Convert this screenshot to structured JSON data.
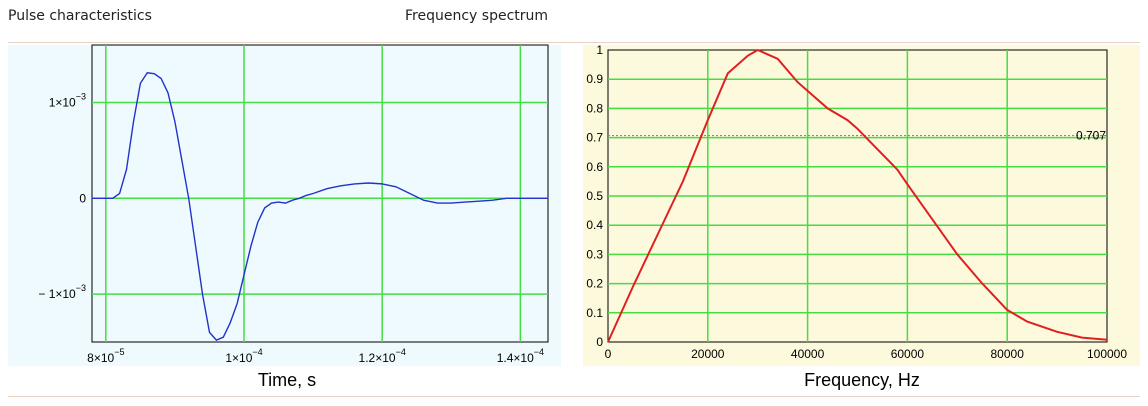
{
  "sections": {
    "left_label": "Pulse characteristics",
    "right_label": "Frequency spectrum"
  },
  "colors": {
    "left_bg": "#eefafd",
    "right_bg": "#fdf9dd",
    "grid": "#44dd44",
    "pulse_line": "#2233cc",
    "spectrum_line": "#e02020",
    "threshold_line": "#888888"
  },
  "chart_data": [
    {
      "type": "line",
      "title": "",
      "xlabel": "Time, s",
      "ylabel": "",
      "xlim": [
        7.8e-05,
        0.000144
      ],
      "ylim": [
        -0.0015,
        0.0016
      ],
      "grid": true,
      "x_ticks": [
        {
          "value": 8e-05,
          "mant": "8×10",
          "exp": "−5"
        },
        {
          "value": 0.0001,
          "mant": "1×10",
          "exp": "−4"
        },
        {
          "value": 0.00012,
          "mant": "1.2×10",
          "exp": "−4"
        },
        {
          "value": 0.00014,
          "mant": "1.4×10",
          "exp": "−4"
        }
      ],
      "y_ticks": [
        {
          "value": 0.001,
          "mant": "1×10",
          "exp": "−3"
        },
        {
          "value": 0,
          "mant": "0",
          "exp": ""
        },
        {
          "value": -0.001,
          "mant": "− 1×10",
          "exp": "−3"
        }
      ],
      "series": [
        {
          "x": [
            7.8e-05,
            8e-05,
            8.1e-05,
            8.2e-05,
            8.3e-05,
            8.4e-05,
            8.5e-05,
            8.6e-05,
            8.7e-05,
            8.8e-05,
            8.9e-05,
            9e-05,
            9.1e-05,
            9.2e-05,
            9.3e-05,
            9.4e-05,
            9.5e-05,
            9.6e-05,
            9.7e-05,
            9.8e-05,
            9.9e-05,
            0.0001,
            0.000101,
            0.000102,
            0.000103,
            0.000104,
            0.000105,
            0.000106,
            0.000107,
            0.000108,
            0.000109,
            0.00011,
            0.000112,
            0.000114,
            0.000116,
            0.000118,
            0.00012,
            0.000122,
            0.000124,
            0.000126,
            0.000128,
            0.00013,
            0.000132,
            0.000134,
            0.000136,
            0.000138,
            0.00014,
            0.000142,
            0.000144
          ],
          "y": [
            0,
            0,
            0,
            5e-05,
            0.0003,
            0.0008,
            0.0012,
            0.00131,
            0.0013,
            0.00125,
            0.0011,
            0.0008,
            0.0004,
            0.0,
            -0.0005,
            -0.001,
            -0.0014,
            -0.00148,
            -0.00145,
            -0.0013,
            -0.0011,
            -0.0008,
            -0.0005,
            -0.00025,
            -0.0001,
            -5e-05,
            -4e-05,
            -5e-05,
            -2e-05,
            0.0,
            3e-05,
            5e-05,
            0.0001,
            0.00013,
            0.00015,
            0.00016,
            0.00015,
            0.00012,
            5e-05,
            -2e-05,
            -5e-05,
            -5e-05,
            -4e-05,
            -3e-05,
            -2e-05,
            0.0,
            0.0,
            0.0,
            0.0
          ]
        }
      ]
    },
    {
      "type": "line",
      "title": "",
      "xlabel": "Frequency, Hz",
      "ylabel": "",
      "xlim": [
        0,
        100000
      ],
      "ylim": [
        0,
        1
      ],
      "grid": true,
      "x_ticks": [
        "0",
        "20000",
        "40000",
        "60000",
        "80000",
        "100000"
      ],
      "y_ticks": [
        "0",
        "0.1",
        "0.2",
        "0.3",
        "0.4",
        "0.5",
        "0.6",
        "0.7",
        "0.8",
        "0.9",
        "1"
      ],
      "threshold": {
        "value": 0.707,
        "label": "0.707"
      },
      "series": [
        {
          "x": [
            0,
            5000,
            10000,
            15000,
            20000,
            24000,
            28000,
            30000,
            34000,
            38000,
            40000,
            44000,
            48000,
            50000,
            54000,
            58000,
            60000,
            65000,
            70000,
            75000,
            80000,
            84000,
            90000,
            95000,
            100000
          ],
          "y": [
            0,
            0.19,
            0.37,
            0.55,
            0.76,
            0.92,
            0.98,
            1.0,
            0.97,
            0.89,
            0.86,
            0.8,
            0.76,
            0.73,
            0.66,
            0.59,
            0.54,
            0.42,
            0.3,
            0.2,
            0.11,
            0.07,
            0.035,
            0.015,
            0.008
          ]
        }
      ]
    }
  ]
}
